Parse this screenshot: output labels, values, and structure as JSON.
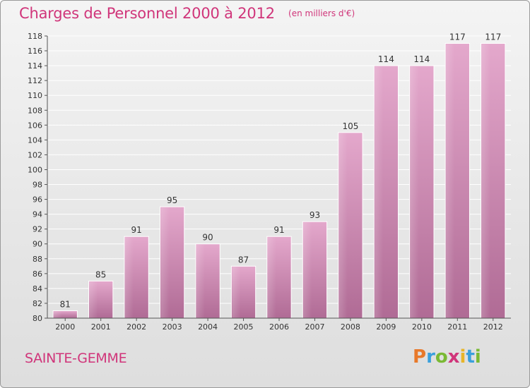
{
  "header": {
    "title": "Charges de Personnel 2000 à 2012",
    "subtitle": "(en milliers d'€)"
  },
  "footer": {
    "commune": "SAINTE-GEMME",
    "logo_text": "Proxiti",
    "logo_letters": [
      {
        "ch": "P",
        "color": "#e8792a"
      },
      {
        "ch": "r",
        "color": "#3aa0dc"
      },
      {
        "ch": "o",
        "color": "#7ab934"
      },
      {
        "ch": "x",
        "color": "#d0357a"
      },
      {
        "ch": "i",
        "color": "#e8b52a"
      },
      {
        "ch": "t",
        "color": "#3aa0dc"
      },
      {
        "ch": "i",
        "color": "#7ab934"
      }
    ]
  },
  "colors": {
    "bar_top": "#e4a8cc",
    "bar_bottom": "#b06b95",
    "accent": "#d0357a",
    "axis": "#555555",
    "grid": "#ffffff"
  },
  "chart_data": {
    "type": "bar",
    "title": "Charges de Personnel 2000 à 2012",
    "subtitle": "(en milliers d'€)",
    "xlabel": "",
    "ylabel": "",
    "categories": [
      "2000",
      "2001",
      "2002",
      "2003",
      "2004",
      "2005",
      "2006",
      "2007",
      "2008",
      "2009",
      "2010",
      "2011",
      "2012"
    ],
    "values": [
      81,
      85,
      91,
      95,
      90,
      87,
      91,
      93,
      105,
      114,
      114,
      117,
      117
    ],
    "ylim": [
      80,
      118
    ],
    "yticks": [
      80,
      82,
      84,
      86,
      88,
      90,
      92,
      94,
      96,
      98,
      100,
      102,
      104,
      106,
      108,
      110,
      112,
      114,
      116,
      118
    ],
    "grid": true,
    "data_labels": true
  }
}
